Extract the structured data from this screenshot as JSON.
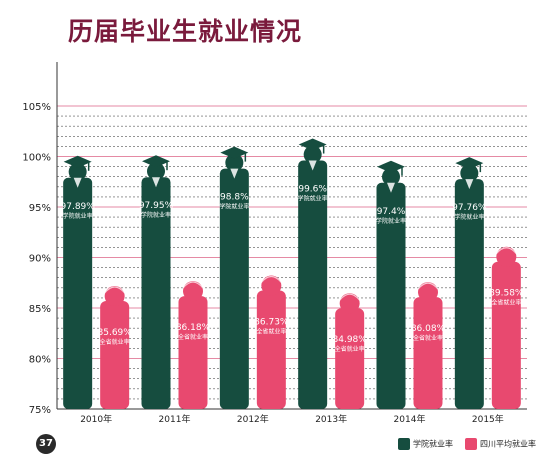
{
  "header": {
    "title": "历届毕业生就业情况"
  },
  "footer": {
    "page": "37"
  },
  "legend": {
    "school": {
      "label": "学院就业率",
      "color": "#164d3f"
    },
    "province": {
      "label": "四川平均就业率",
      "color": "#e8496f"
    }
  },
  "chart_data": {
    "type": "bar",
    "title": "历届毕业生就业情况",
    "categories": [
      "2010年",
      "2011年",
      "2012年",
      "2013年",
      "2014年",
      "2015年"
    ],
    "yticks": [
      "75%",
      "80%",
      "85%",
      "90%",
      "95%",
      "100%",
      "105%"
    ],
    "ylim": [
      75,
      105
    ],
    "series": [
      {
        "name": "学院就业率",
        "values": [
          97.89,
          97.95,
          98.8,
          99.6,
          97.4,
          97.76
        ],
        "labels": [
          "97.89%",
          "97.95%",
          "98.8%",
          "99.6%",
          "97.4%",
          "97.76%"
        ],
        "sublabel": "学院就业率",
        "color": "#164d3f"
      },
      {
        "name": "四川平均就业率",
        "values": [
          85.69,
          86.18,
          86.73,
          84.98,
          86.08,
          89.58
        ],
        "labels": [
          "85.69%",
          "86.18%",
          "86.73%",
          "84.98%",
          "86.08%",
          "89.58%"
        ],
        "sublabel": "全省就业率",
        "color": "#e8496f"
      }
    ]
  }
}
